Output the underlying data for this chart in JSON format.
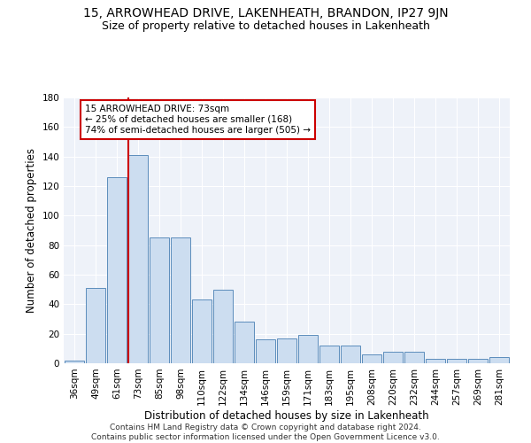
{
  "title": "15, ARROWHEAD DRIVE, LAKENHEATH, BRANDON, IP27 9JN",
  "subtitle": "Size of property relative to detached houses in Lakenheath",
  "xlabel": "Distribution of detached houses by size in Lakenheath",
  "ylabel": "Number of detached properties",
  "categories": [
    "36sqm",
    "49sqm",
    "61sqm",
    "73sqm",
    "85sqm",
    "98sqm",
    "110sqm",
    "122sqm",
    "134sqm",
    "146sqm",
    "159sqm",
    "171sqm",
    "183sqm",
    "195sqm",
    "208sqm",
    "220sqm",
    "232sqm",
    "244sqm",
    "257sqm",
    "269sqm",
    "281sqm"
  ],
  "values": [
    2,
    51,
    126,
    141,
    85,
    85,
    43,
    50,
    28,
    16,
    17,
    19,
    12,
    12,
    6,
    8,
    8,
    3,
    3,
    3,
    4
  ],
  "bar_color": "#ccddf0",
  "bar_edge_color": "#5c8dbc",
  "vline_index": 3,
  "vline_color": "#cc0000",
  "annotation_text": "15 ARROWHEAD DRIVE: 73sqm\n← 25% of detached houses are smaller (168)\n74% of semi-detached houses are larger (505) →",
  "annotation_box_color": "#ffffff",
  "annotation_box_edge": "#cc0000",
  "ylim": [
    0,
    180
  ],
  "yticks": [
    0,
    20,
    40,
    60,
    80,
    100,
    120,
    140,
    160,
    180
  ],
  "bg_color": "#eef2f9",
  "footer": "Contains HM Land Registry data © Crown copyright and database right 2024.\nContains public sector information licensed under the Open Government Licence v3.0.",
  "title_fontsize": 10,
  "subtitle_fontsize": 9,
  "xlabel_fontsize": 8.5,
  "ylabel_fontsize": 8.5,
  "tick_fontsize": 7.5,
  "footer_fontsize": 6.5,
  "annotation_fontsize": 7.5
}
